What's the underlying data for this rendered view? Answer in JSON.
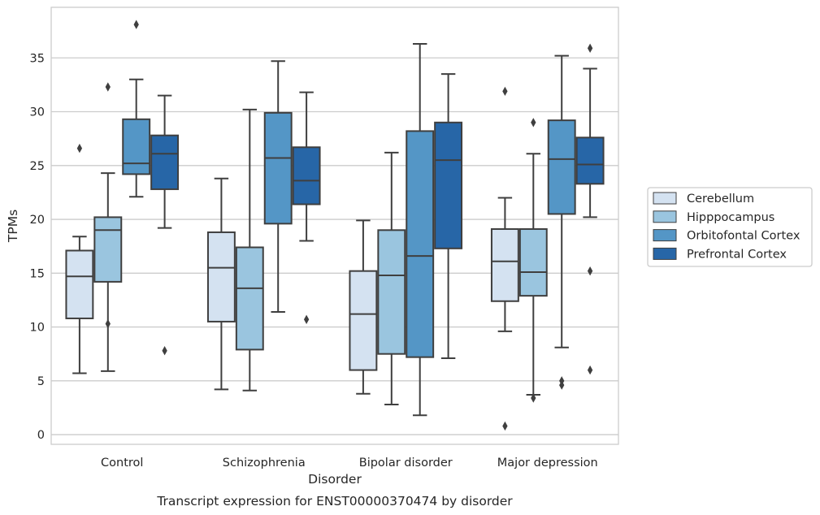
{
  "chart_data": {
    "type": "box",
    "caption": "Transcript expression for ENST00000370474 by disorder",
    "xlabel": "Disorder",
    "ylabel": "TPMs",
    "ylim": [
      -0.9,
      39.7
    ],
    "yticks": [
      0,
      5,
      10,
      15,
      20,
      25,
      30,
      35
    ],
    "grid": "horizontal",
    "legend_position": "right",
    "categories": [
      "Control",
      "Schizophrenia",
      "Bipolar disorder",
      "Major depression"
    ],
    "series": [
      {
        "name": "Cerebellum",
        "color": "#d4e2f1",
        "boxes": [
          {
            "whislo": 5.7,
            "q1": 10.8,
            "med": 14.7,
            "q3": 17.1,
            "whishi": 18.4,
            "fliers": [
              26.6
            ]
          },
          {
            "whislo": 4.2,
            "q1": 10.5,
            "med": 15.5,
            "q3": 18.8,
            "whishi": 23.8,
            "fliers": []
          },
          {
            "whislo": 3.8,
            "q1": 6.0,
            "med": 11.2,
            "q3": 15.2,
            "whishi": 19.9,
            "fliers": []
          },
          {
            "whislo": 9.6,
            "q1": 12.4,
            "med": 16.1,
            "q3": 19.1,
            "whishi": 22.0,
            "fliers": [
              31.9,
              0.8
            ]
          }
        ]
      },
      {
        "name": "Hipppocampus",
        "color": "#9ac5df",
        "boxes": [
          {
            "whislo": 5.9,
            "q1": 14.2,
            "med": 19.0,
            "q3": 20.2,
            "whishi": 24.3,
            "fliers": [
              32.3,
              10.3
            ]
          },
          {
            "whislo": 4.1,
            "q1": 7.9,
            "med": 13.6,
            "q3": 17.4,
            "whishi": 30.2,
            "fliers": []
          },
          {
            "whislo": 2.8,
            "q1": 7.5,
            "med": 14.8,
            "q3": 19.0,
            "whishi": 26.2,
            "fliers": []
          },
          {
            "whislo": 3.7,
            "q1": 12.9,
            "med": 15.1,
            "q3": 19.1,
            "whishi": 26.1,
            "fliers": [
              29.0,
              3.4
            ]
          }
        ]
      },
      {
        "name": "Orbitofontal Cortex",
        "color": "#5496c6",
        "boxes": [
          {
            "whislo": 22.1,
            "q1": 24.2,
            "med": 25.2,
            "q3": 29.3,
            "whishi": 33.0,
            "fliers": [
              38.1
            ]
          },
          {
            "whislo": 11.4,
            "q1": 19.6,
            "med": 25.7,
            "q3": 29.9,
            "whishi": 34.7,
            "fliers": []
          },
          {
            "whislo": 1.8,
            "q1": 7.2,
            "med": 16.6,
            "q3": 28.2,
            "whishi": 36.3,
            "fliers": []
          },
          {
            "whislo": 8.1,
            "q1": 20.5,
            "med": 25.6,
            "q3": 29.2,
            "whishi": 35.2,
            "fliers": [
              5.0,
              4.6
            ]
          }
        ]
      },
      {
        "name": "Prefrontal Cortex",
        "color": "#2766a7",
        "boxes": [
          {
            "whislo": 19.2,
            "q1": 22.8,
            "med": 26.1,
            "q3": 27.8,
            "whishi": 31.5,
            "fliers": [
              7.8
            ]
          },
          {
            "whislo": 18.0,
            "q1": 21.4,
            "med": 23.6,
            "q3": 26.7,
            "whishi": 31.8,
            "fliers": [
              10.7
            ]
          },
          {
            "whislo": 7.1,
            "q1": 17.3,
            "med": 25.5,
            "q3": 29.0,
            "whishi": 33.5,
            "fliers": []
          },
          {
            "whislo": 20.2,
            "q1": 23.3,
            "med": 25.1,
            "q3": 27.6,
            "whishi": 34.0,
            "fliers": [
              35.9,
              15.2,
              6.0
            ]
          }
        ]
      }
    ]
  }
}
